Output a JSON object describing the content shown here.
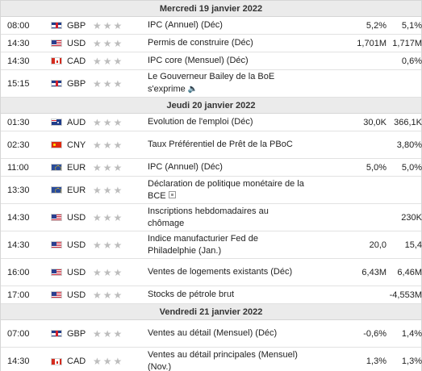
{
  "days": [
    {
      "label": "Mercredi 19 janvier 2022",
      "events": [
        {
          "time": "08:00",
          "flag": "gbp",
          "currency": "GBP",
          "event": "IPC (Annuel) (Déc)",
          "actual": "",
          "forecast": "5,2%",
          "previous": "5,1%",
          "icon": ""
        },
        {
          "time": "14:30",
          "flag": "usd",
          "currency": "USD",
          "event": "Permis de construire (Déc)",
          "actual": "",
          "forecast": "1,701M",
          "previous": "1,717M",
          "icon": ""
        },
        {
          "time": "14:30",
          "flag": "cad",
          "currency": "CAD",
          "event": "IPC core (Mensuel) (Déc)",
          "actual": "",
          "forecast": "",
          "previous": "0,6%",
          "icon": ""
        },
        {
          "time": "15:15",
          "flag": "gbp",
          "currency": "GBP",
          "event": "Le Gouverneur Bailey de la BoE s'exprime",
          "actual": "",
          "forecast": "",
          "previous": "",
          "icon": "speaker"
        }
      ]
    },
    {
      "label": "Jeudi 20 janvier 2022",
      "events": [
        {
          "time": "01:30",
          "flag": "aud",
          "currency": "AUD",
          "event": "Evolution de l'emploi (Déc)",
          "actual": "",
          "forecast": "30,0K",
          "previous": "366,1K",
          "icon": ""
        },
        {
          "time": "02:30",
          "flag": "cny",
          "currency": "CNY",
          "event": "Taux Préférentiel de Prêt de la PBoC",
          "actual": "",
          "forecast": "",
          "previous": "3,80%",
          "icon": ""
        },
        {
          "time": "11:00",
          "flag": "eur",
          "currency": "EUR",
          "event": "IPC (Annuel) (Déc)",
          "actual": "",
          "forecast": "5,0%",
          "previous": "5,0%",
          "icon": ""
        },
        {
          "time": "13:30",
          "flag": "eur",
          "currency": "EUR",
          "event": "Déclaration de politique monétaire de la BCE",
          "actual": "",
          "forecast": "",
          "previous": "",
          "icon": "doc"
        },
        {
          "time": "14:30",
          "flag": "usd",
          "currency": "USD",
          "event": "Inscriptions hebdomadaires au chômage",
          "actual": "",
          "forecast": "",
          "previous": "230K",
          "icon": ""
        },
        {
          "time": "14:30",
          "flag": "usd",
          "currency": "USD",
          "event": "Indice manufacturier Fed de Philadelphie (Jan.)",
          "actual": "",
          "forecast": "20,0",
          "previous": "15,4",
          "icon": ""
        },
        {
          "time": "16:00",
          "flag": "usd",
          "currency": "USD",
          "event": "Ventes de logements existants (Déc)",
          "actual": "",
          "forecast": "6,43M",
          "previous": "6,46M",
          "icon": ""
        },
        {
          "time": "17:00",
          "flag": "usd",
          "currency": "USD",
          "event": "Stocks de pétrole brut",
          "actual": "",
          "forecast": "",
          "previous": "-4,553M",
          "icon": ""
        }
      ]
    },
    {
      "label": "Vendredi 21 janvier 2022",
      "events": [
        {
          "time": "07:00",
          "flag": "gbp",
          "currency": "GBP",
          "event": "Ventes au détail (Mensuel) (Déc)",
          "actual": "",
          "forecast": "-0,6%",
          "previous": "1,4%",
          "icon": ""
        },
        {
          "time": "14:30",
          "flag": "cad",
          "currency": "CAD",
          "event": "Ventes au détail principales (Mensuel) (Nov.)",
          "actual": "",
          "forecast": "1,3%",
          "previous": "1,3%",
          "icon": ""
        }
      ]
    }
  ]
}
